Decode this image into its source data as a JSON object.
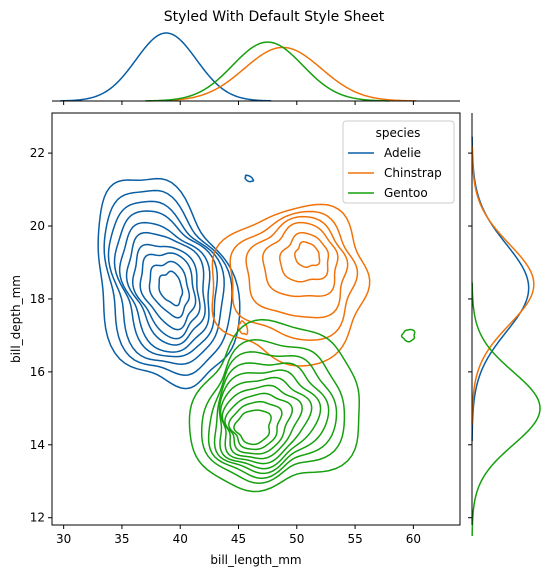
{
  "chart_data": {
    "type": "kde-jointplot",
    "title": "Styled With Default Style Sheet",
    "xlabel": "bill_length_mm",
    "ylabel": "bill_depth_mm",
    "xlim": [
      29,
      64
    ],
    "ylim": [
      11.8,
      23.1
    ],
    "xticks": [
      30,
      35,
      40,
      45,
      50,
      55,
      60
    ],
    "yticks": [
      12,
      14,
      16,
      18,
      20,
      22
    ],
    "grid": false,
    "legend": {
      "title": "species",
      "placement": "top-right"
    },
    "series": [
      {
        "name": "Adelie",
        "color": "#0a5ea3",
        "x_marginal": {
          "mean": 38.8,
          "sd": 2.6
        },
        "y_marginal": {
          "mean": 18.3,
          "sd": 1.2
        },
        "contours": [
          {
            "center": [
              38.6,
              18.4
            ],
            "radius": [
              5.6,
              2.95
            ],
            "angle": 18
          },
          {
            "center": [
              38.7,
              18.4
            ],
            "radius": [
              5.0,
              2.6
            ],
            "angle": 18
          },
          {
            "center": [
              38.7,
              18.4
            ],
            "radius": [
              4.5,
              2.3
            ],
            "angle": 18
          },
          {
            "center": [
              38.8,
              18.4
            ],
            "radius": [
              4.0,
              2.05
            ],
            "angle": 18
          },
          {
            "center": [
              38.8,
              18.35
            ],
            "radius": [
              3.55,
              1.8
            ],
            "angle": 18
          },
          {
            "center": [
              38.9,
              18.35
            ],
            "radius": [
              3.1,
              1.55
            ],
            "angle": 18
          },
          {
            "center": [
              38.9,
              18.3
            ],
            "radius": [
              2.65,
              1.3
            ],
            "angle": 18
          },
          {
            "center": [
              39.0,
              18.3
            ],
            "radius": [
              2.2,
              1.05
            ],
            "angle": 18
          },
          {
            "center": [
              39.1,
              18.3
            ],
            "radius": [
              1.6,
              0.75
            ],
            "angle": 18
          },
          {
            "center": [
              39.2,
              18.3
            ],
            "radius": [
              0.95,
              0.45
            ],
            "angle": 18
          },
          {
            "center": [
              45.9,
              21.3
            ],
            "radius": [
              0.22,
              0.12
            ],
            "angle": 60
          }
        ]
      },
      {
        "name": "Chinstrap",
        "color": "#f0730a",
        "x_marginal": {
          "mean": 48.8,
          "sd": 3.3
        },
        "y_marginal": {
          "mean": 18.4,
          "sd": 1.1
        },
        "contours": [
          {
            "center": [
              49.5,
              18.4
            ],
            "radius": [
              6.8,
              2.1
            ],
            "angle": 42
          },
          {
            "center": [
              49.8,
              18.6
            ],
            "radius": [
              5.4,
              1.7
            ],
            "angle": 42
          },
          {
            "center": [
              50.1,
              18.8
            ],
            "radius": [
              4.3,
              1.35
            ],
            "angle": 42
          },
          {
            "center": [
              50.4,
              19.0
            ],
            "radius": [
              3.2,
              1.0
            ],
            "angle": 42
          },
          {
            "center": [
              50.7,
              19.1
            ],
            "radius": [
              2.1,
              0.65
            ],
            "angle": 42
          },
          {
            "center": [
              50.9,
              19.2
            ],
            "radius": [
              1.0,
              0.35
            ],
            "angle": 42
          },
          {
            "center": [
              45.4,
              17.2
            ],
            "radius": [
              0.35,
              0.18
            ],
            "angle": 20
          }
        ]
      },
      {
        "name": "Gentoo",
        "color": "#16a00f",
        "x_marginal": {
          "mean": 47.5,
          "sd": 3.0
        },
        "y_marginal": {
          "mean": 15.0,
          "sd": 1.0
        },
        "contours": [
          {
            "center": [
              48.2,
              15.0
            ],
            "radius": [
              7.6,
              2.15
            ],
            "angle": 38
          },
          {
            "center": [
              47.9,
              14.9
            ],
            "radius": [
              6.3,
              1.8
            ],
            "angle": 38
          },
          {
            "center": [
              47.7,
              14.85
            ],
            "radius": [
              5.6,
              1.6
            ],
            "angle": 38
          },
          {
            "center": [
              47.5,
              14.8
            ],
            "radius": [
              5.0,
              1.42
            ],
            "angle": 38
          },
          {
            "center": [
              47.3,
              14.75
            ],
            "radius": [
              4.45,
              1.26
            ],
            "angle": 38
          },
          {
            "center": [
              47.1,
              14.7
            ],
            "radius": [
              3.9,
              1.1
            ],
            "angle": 38
          },
          {
            "center": [
              46.9,
              14.65
            ],
            "radius": [
              3.35,
              0.94
            ],
            "angle": 38
          },
          {
            "center": [
              46.7,
              14.6
            ],
            "radius": [
              2.8,
              0.78
            ],
            "angle": 38
          },
          {
            "center": [
              46.5,
              14.55
            ],
            "radius": [
              2.2,
              0.62
            ],
            "angle": 38
          },
          {
            "center": [
              46.3,
              14.5
            ],
            "radius": [
              1.55,
              0.45
            ],
            "angle": 38
          },
          {
            "center": [
              59.6,
              17.0
            ],
            "radius": [
              0.55,
              0.16
            ],
            "angle": 35
          }
        ]
      }
    ]
  }
}
